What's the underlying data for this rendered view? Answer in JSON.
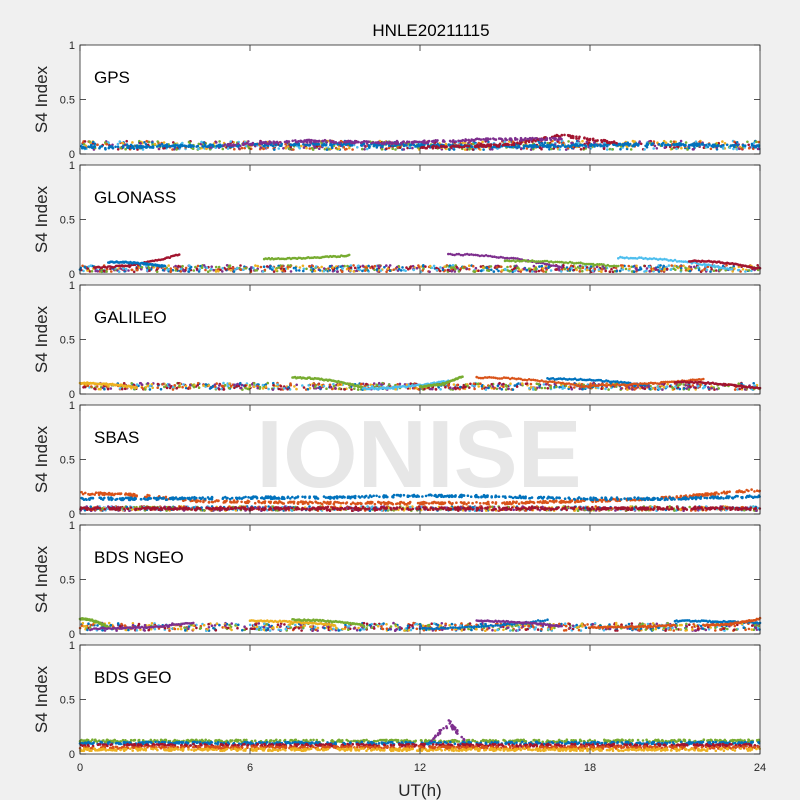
{
  "figure": {
    "title": "HNLE20211115",
    "watermark": "IONISE",
    "xlabel": "UT(h)",
    "ylabel": "S4 Index",
    "xticks": [
      "0",
      "6",
      "12",
      "18",
      "24"
    ],
    "yticks": [
      "0",
      "0.5",
      "1"
    ]
  },
  "colors": {
    "background": "#f0f0f0",
    "axes_bg": "#ffffff",
    "axis_line": "#262626",
    "watermark": "#e6e6e6",
    "series": [
      "#0072BD",
      "#D95319",
      "#EDB120",
      "#7E2F8E",
      "#77AC30",
      "#4DBEEE",
      "#A2142F"
    ]
  },
  "chart_data": [
    {
      "type": "scatter",
      "label": "GPS",
      "xlim": [
        0,
        24
      ],
      "ylim": [
        0,
        1
      ],
      "baseline": [
        0.04,
        0.12
      ],
      "series": [
        {
          "color_index": 0,
          "x": [
            0,
            3,
            6,
            9,
            12,
            15,
            18,
            21,
            24
          ],
          "y": [
            0.06,
            0.07,
            0.08,
            0.09,
            0.08,
            0.07,
            0.08,
            0.09,
            0.07
          ]
        },
        {
          "color_index": 6,
          "x": [
            12,
            15,
            17,
            19
          ],
          "y": [
            0.06,
            0.08,
            0.17,
            0.1
          ]
        },
        {
          "color_index": 3,
          "x": [
            5,
            8,
            11,
            14,
            17
          ],
          "y": [
            0.08,
            0.12,
            0.1,
            0.13,
            0.14
          ]
        }
      ],
      "arcs": []
    },
    {
      "type": "scatter",
      "label": "GLONASS",
      "xlim": [
        0,
        24
      ],
      "ylim": [
        0,
        1
      ],
      "baseline": [
        0.02,
        0.08
      ],
      "series": [],
      "arcs": [
        {
          "color_index": 6,
          "x": [
            0.5,
            3.5
          ],
          "y": [
            0.06,
            0.18
          ]
        },
        {
          "color_index": 4,
          "x": [
            6.5,
            9.5
          ],
          "y": [
            0.14,
            0.17
          ]
        },
        {
          "color_index": 3,
          "x": [
            13,
            17
          ],
          "y": [
            0.18,
            0.06
          ]
        },
        {
          "color_index": 4,
          "x": [
            15,
            19
          ],
          "y": [
            0.12,
            0.07
          ]
        },
        {
          "color_index": 5,
          "x": [
            19,
            23
          ],
          "y": [
            0.15,
            0.04
          ]
        },
        {
          "color_index": 6,
          "x": [
            21.5,
            24
          ],
          "y": [
            0.12,
            0.05
          ]
        },
        {
          "color_index": 0,
          "x": [
            1,
            3
          ],
          "y": [
            0.11,
            0.07
          ]
        }
      ]
    },
    {
      "type": "scatter",
      "label": "GALILEO",
      "xlim": [
        0,
        24
      ],
      "ylim": [
        0,
        1
      ],
      "baseline": [
        0.04,
        0.1
      ],
      "series": [],
      "arcs": [
        {
          "color_index": 2,
          "x": [
            0,
            2
          ],
          "y": [
            0.1,
            0.06
          ]
        },
        {
          "color_index": 4,
          "x": [
            7.5,
            10
          ],
          "y": [
            0.15,
            0.06
          ]
        },
        {
          "color_index": 5,
          "x": [
            10,
            13
          ],
          "y": [
            0.05,
            0.12
          ]
        },
        {
          "color_index": 4,
          "x": [
            12,
            13.5
          ],
          "y": [
            0.07,
            0.16
          ]
        },
        {
          "color_index": 1,
          "x": [
            14,
            18
          ],
          "y": [
            0.15,
            0.06
          ]
        },
        {
          "color_index": 0,
          "x": [
            16.5,
            20
          ],
          "y": [
            0.14,
            0.08
          ]
        },
        {
          "color_index": 1,
          "x": [
            18,
            22
          ],
          "y": [
            0.08,
            0.14
          ]
        },
        {
          "color_index": 6,
          "x": [
            21,
            24
          ],
          "y": [
            0.11,
            0.05
          ]
        }
      ]
    },
    {
      "type": "scatter",
      "label": "SBAS",
      "xlim": [
        0,
        24
      ],
      "ylim": [
        0,
        1
      ],
      "baseline": [
        0.03,
        0.07
      ],
      "series": [
        {
          "color_index": 1,
          "x": [
            0,
            1.5,
            3,
            4,
            6,
            9,
            12,
            15,
            18,
            21,
            22.5,
            24
          ],
          "y": [
            0.19,
            0.18,
            0.15,
            0.12,
            0.11,
            0.1,
            0.1,
            0.1,
            0.12,
            0.15,
            0.19,
            0.22
          ]
        },
        {
          "color_index": 0,
          "x": [
            0,
            3,
            6,
            9,
            12,
            15,
            18,
            21,
            24
          ],
          "y": [
            0.14,
            0.14,
            0.15,
            0.15,
            0.17,
            0.16,
            0.14,
            0.14,
            0.16
          ]
        },
        {
          "color_index": 6,
          "x": [
            0,
            24
          ],
          "y": [
            0.05,
            0.05
          ]
        }
      ],
      "arcs": []
    },
    {
      "type": "scatter",
      "label": "BDS NGEO",
      "xlim": [
        0,
        24
      ],
      "ylim": [
        0,
        1
      ],
      "baseline": [
        0.03,
        0.1
      ],
      "series": [],
      "arcs": [
        {
          "color_index": 4,
          "x": [
            0,
            1
          ],
          "y": [
            0.14,
            0.06
          ]
        },
        {
          "color_index": 3,
          "x": [
            0.5,
            4
          ],
          "y": [
            0.05,
            0.1
          ]
        },
        {
          "color_index": 2,
          "x": [
            6,
            9
          ],
          "y": [
            0.12,
            0.08
          ]
        },
        {
          "color_index": 4,
          "x": [
            7.5,
            10
          ],
          "y": [
            0.13,
            0.08
          ]
        },
        {
          "color_index": 0,
          "x": [
            12,
            16.5
          ],
          "y": [
            0.05,
            0.13
          ]
        },
        {
          "color_index": 3,
          "x": [
            14,
            17
          ],
          "y": [
            0.12,
            0.07
          ]
        },
        {
          "color_index": 1,
          "x": [
            18,
            21
          ],
          "y": [
            0.06,
            0.08
          ]
        },
        {
          "color_index": 0,
          "x": [
            21,
            24
          ],
          "y": [
            0.12,
            0.1
          ]
        },
        {
          "color_index": 1,
          "x": [
            22,
            24
          ],
          "y": [
            0.08,
            0.14
          ]
        }
      ]
    },
    {
      "type": "scatter",
      "label": "BDS GEO",
      "xlim": [
        0,
        24
      ],
      "ylim": [
        0,
        1
      ],
      "baseline": [
        0.0,
        0.0
      ],
      "series": [
        {
          "color_index": 4,
          "x": [
            0,
            24
          ],
          "y": [
            0.12,
            0.12
          ]
        },
        {
          "color_index": 0,
          "x": [
            0,
            24
          ],
          "y": [
            0.1,
            0.1
          ]
        },
        {
          "color_index": 6,
          "x": [
            0,
            24
          ],
          "y": [
            0.08,
            0.08
          ]
        },
        {
          "color_index": 1,
          "x": [
            0,
            24
          ],
          "y": [
            0.06,
            0.06
          ]
        },
        {
          "color_index": 2,
          "x": [
            0,
            24
          ],
          "y": [
            0.04,
            0.04
          ]
        }
      ],
      "arcs": [],
      "burst": {
        "color_index": 3,
        "x": [
          12.4,
          13.6
        ],
        "peak": 0.33
      }
    }
  ]
}
